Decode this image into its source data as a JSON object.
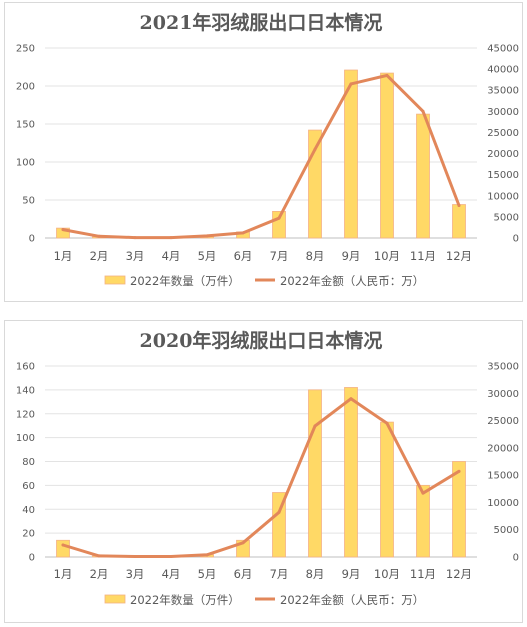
{
  "chart_data": [
    {
      "type": "bar",
      "title": "2021年羽绒服出口日本情况",
      "categories": [
        "1月",
        "2月",
        "3月",
        "4月",
        "5月",
        "6月",
        "7月",
        "8月",
        "9月",
        "10月",
        "11月",
        "12月"
      ],
      "series": [
        {
          "name": "2022年数量（万件）",
          "type": "bar",
          "axis": "left",
          "color": "#ffd966",
          "edge_color": "#f4b183",
          "values": [
            13,
            2,
            1,
            1,
            3,
            8,
            35,
            142,
            221,
            217,
            163,
            44
          ]
        },
        {
          "name": "2022年金额（人民币：万）",
          "type": "line",
          "axis": "right",
          "color": "#e2875a",
          "values": [
            2000,
            400,
            100,
            100,
            500,
            1200,
            4700,
            21000,
            36500,
            38500,
            30000,
            7700
          ]
        }
      ],
      "ylim_left": [
        0,
        250
      ],
      "yticks_left": [
        0,
        50,
        100,
        150,
        200,
        250
      ],
      "ylim_right": [
        0,
        45000
      ],
      "yticks_right": [
        0,
        5000,
        10000,
        15000,
        20000,
        25000,
        30000,
        35000,
        40000,
        45000
      ],
      "grid": true,
      "legend_position": "bottom"
    },
    {
      "type": "bar",
      "title": "2020年羽绒服出口日本情况",
      "categories": [
        "1月",
        "2月",
        "3月",
        "4月",
        "5月",
        "6月",
        "7月",
        "8月",
        "9月",
        "10月",
        "11月",
        "12月"
      ],
      "series": [
        {
          "name": "2022年数量（万件）",
          "type": "bar",
          "axis": "left",
          "color": "#ffd966",
          "edge_color": "#f4b183",
          "values": [
            14,
            1,
            0,
            1,
            2,
            14,
            54,
            140,
            142,
            113,
            60,
            80
          ]
        },
        {
          "name": "2022年金额（人民币：万）",
          "type": "line",
          "axis": "right",
          "color": "#e2875a",
          "values": [
            2200,
            200,
            100,
            100,
            400,
            2600,
            8200,
            24000,
            29000,
            24500,
            11700,
            15700
          ]
        }
      ],
      "ylim_left": [
        0,
        160
      ],
      "yticks_left": [
        0,
        20,
        40,
        60,
        80,
        100,
        120,
        140,
        160
      ],
      "ylim_right": [
        0,
        35000
      ],
      "yticks_right": [
        0,
        5000,
        10000,
        15000,
        20000,
        25000,
        30000,
        35000
      ],
      "grid": true,
      "legend_position": "bottom"
    }
  ]
}
